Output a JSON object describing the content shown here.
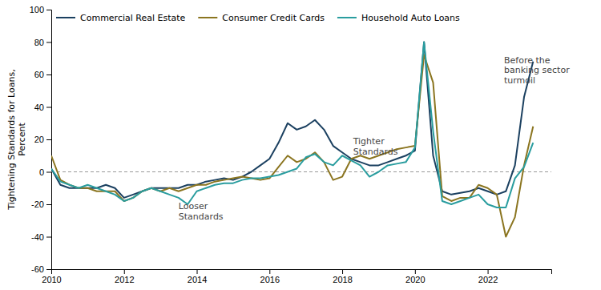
{
  "chart_data": {
    "type": "line",
    "ylabel": "Tightening Standards for Loans,\nPercent",
    "xlim": [
      2010.0,
      2023.75
    ],
    "xticks": [
      2010,
      2012,
      2014,
      2016,
      2018,
      2020,
      2022
    ],
    "ylim": [
      -60,
      100
    ],
    "yticks": [
      -60,
      -40,
      -20,
      0,
      20,
      40,
      60,
      80,
      100
    ],
    "legend": "upper left",
    "grid": false,
    "x": [
      2010.0,
      2010.25,
      2010.5,
      2010.75,
      2011.0,
      2011.25,
      2011.5,
      2011.75,
      2012.0,
      2012.25,
      2012.5,
      2012.75,
      2013.0,
      2013.25,
      2013.5,
      2013.75,
      2014.0,
      2014.25,
      2014.5,
      2014.75,
      2015.0,
      2015.25,
      2015.5,
      2015.75,
      2016.0,
      2016.25,
      2016.5,
      2016.75,
      2017.0,
      2017.25,
      2017.5,
      2017.75,
      2018.0,
      2018.25,
      2018.5,
      2018.75,
      2019.0,
      2019.25,
      2019.5,
      2019.75,
      2020.0,
      2020.25,
      2020.5,
      2020.75,
      2021.0,
      2021.25,
      2021.5,
      2021.75,
      2022.0,
      2022.25,
      2022.5,
      2022.75,
      2023.0,
      2023.25
    ],
    "series": [
      {
        "name": "Commercial Real Estate",
        "color": "#1b4060",
        "values": [
          2,
          -8,
          -10,
          -10,
          -10,
          -10,
          -8,
          -10,
          -16,
          -14,
          -12,
          -10,
          -10,
          -10,
          -10,
          -8,
          -8,
          -6,
          -5,
          -4,
          -5,
          -3,
          0,
          4,
          8,
          18,
          30,
          26,
          28,
          32,
          26,
          16,
          12,
          8,
          6,
          4,
          4,
          6,
          8,
          10,
          13,
          80,
          10,
          -12,
          -14,
          -13,
          -12,
          -10,
          -12,
          -14,
          -12,
          4,
          46,
          68
        ]
      },
      {
        "name": "Consumer Credit Cards",
        "color": "#8b7520",
        "values": [
          10,
          -5,
          -8,
          -10,
          -10,
          -12,
          -12,
          -12,
          -18,
          -16,
          -12,
          -10,
          -12,
          -10,
          -12,
          -10,
          -8,
          -8,
          -6,
          -5,
          -4,
          -3,
          -4,
          -5,
          -4,
          3,
          10,
          6,
          8,
          12,
          6,
          -5,
          -3,
          8,
          10,
          8,
          10,
          12,
          14,
          15,
          16,
          72,
          55,
          -15,
          -18,
          -16,
          -16,
          -8,
          -10,
          -14,
          -40,
          -28,
          4,
          28
        ]
      },
      {
        "name": "Household Auto Loans",
        "color": "#2a9d9f",
        "values": [
          2,
          -6,
          -8,
          -10,
          -8,
          -10,
          -12,
          -14,
          -18,
          -16,
          -12,
          -10,
          -12,
          -14,
          -16,
          -20,
          -12,
          -10,
          -8,
          -7,
          -7,
          -5,
          -4,
          -4,
          -3,
          -2,
          0,
          2,
          9,
          11,
          6,
          4,
          10,
          7,
          4,
          -3,
          0,
          4,
          5,
          6,
          15,
          80,
          25,
          -18,
          -20,
          -18,
          -16,
          -14,
          -20,
          -22,
          -22,
          -4,
          3,
          18
        ]
      }
    ],
    "annotations": [
      {
        "x": 2018.3,
        "y": 22,
        "text": "Tighter\nStandards"
      },
      {
        "x": 2013.5,
        "y": -18,
        "text": "Looser\nStandards"
      },
      {
        "x": 2022.45,
        "y": 72,
        "text": "Before the\nbanking sector\nturmoil"
      }
    ]
  }
}
